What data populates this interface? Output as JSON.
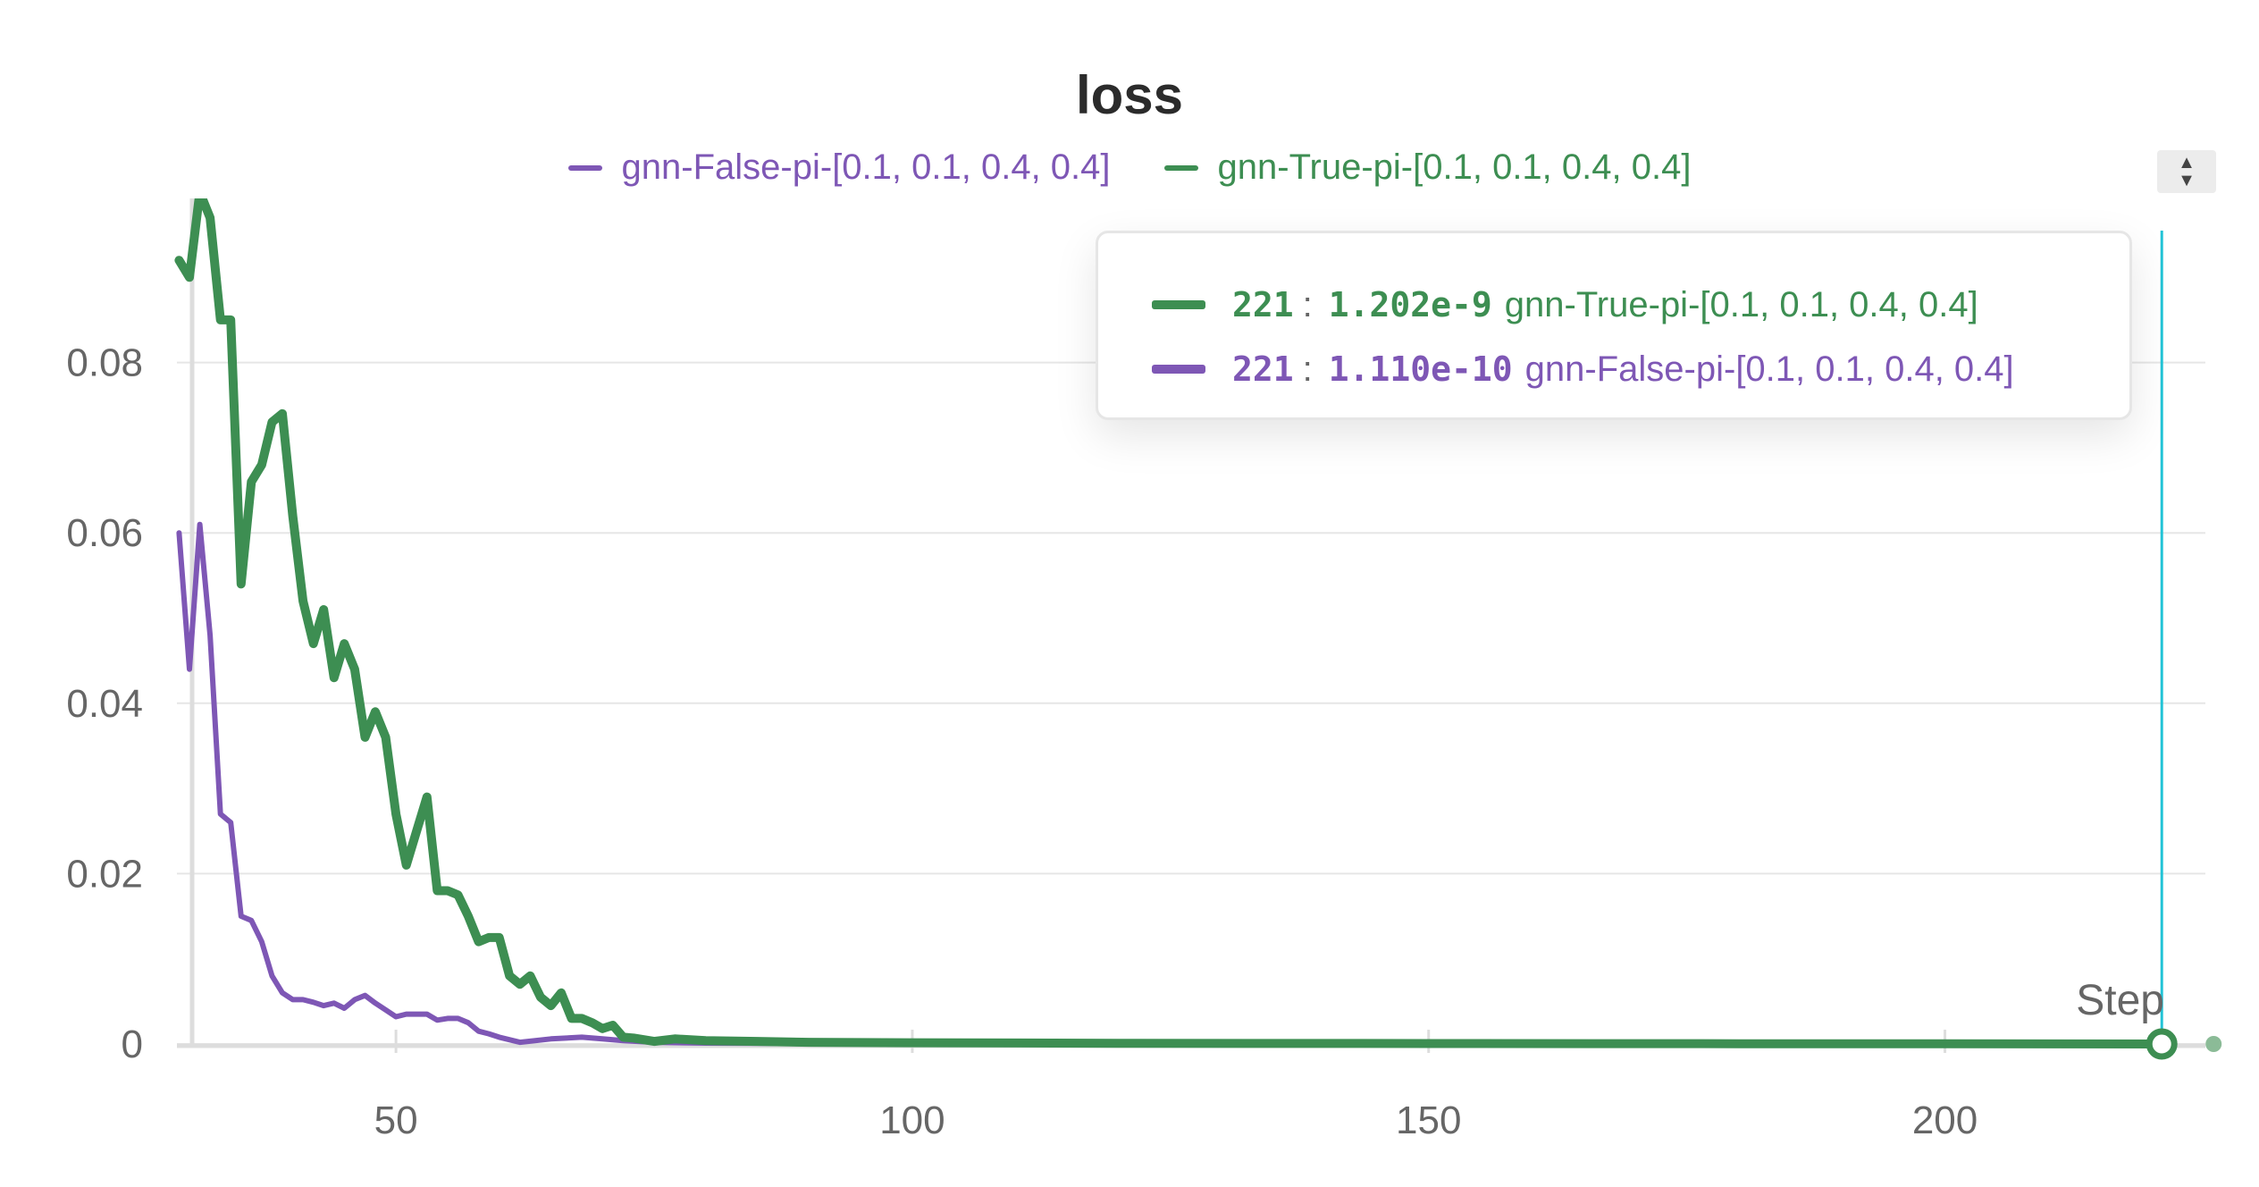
{
  "chart_data": {
    "type": "line",
    "title": "loss",
    "xlabel": "Step",
    "ylabel": "",
    "xlim": [
      30,
      226
    ],
    "ylim": [
      0,
      0.1
    ],
    "x_ticks": [
      "50",
      "100",
      "150",
      "200"
    ],
    "y_ticks": [
      "0",
      "0.02",
      "0.04",
      "0.06",
      "0.08"
    ],
    "grid": true,
    "legend": "top-center",
    "series": [
      {
        "name": "gnn-False-pi-[0.1, 0.1, 0.4, 0.4]",
        "color": "#7e57b5",
        "x": [
          29,
          30,
          31,
          32,
          33,
          34,
          35,
          36,
          37,
          38,
          39,
          40,
          41,
          42,
          43,
          44,
          45,
          46,
          47,
          48,
          49,
          50,
          51,
          52,
          53,
          54,
          55,
          56,
          57,
          58,
          59,
          60,
          62,
          65,
          68,
          70,
          72,
          75,
          80,
          90,
          100,
          120,
          150,
          180,
          200,
          221
        ],
        "y": [
          0.06,
          0.044,
          0.061,
          0.048,
          0.027,
          0.026,
          0.015,
          0.0145,
          0.012,
          0.008,
          0.006,
          0.0052,
          0.0052,
          0.0049,
          0.0045,
          0.0048,
          0.0042,
          0.0052,
          0.0057,
          0.0048,
          0.004,
          0.0032,
          0.0035,
          0.0035,
          0.0035,
          0.0028,
          0.003,
          0.003,
          0.0025,
          0.0015,
          0.0012,
          0.0008,
          0.0002,
          0.0006,
          0.0008,
          0.0006,
          0.0004,
          0.0002,
          0.0001,
          5e-05,
          2e-05,
          1e-05,
          0.0,
          0.0,
          0.0,
          1.11e-10
        ]
      },
      {
        "name": "gnn-True-pi-[0.1, 0.1, 0.4, 0.4]",
        "color": "#3d8e52",
        "x": [
          29,
          30,
          31,
          32,
          33,
          34,
          35,
          36,
          37,
          38,
          39,
          40,
          41,
          42,
          43,
          44,
          45,
          46,
          47,
          48,
          49,
          50,
          51,
          52,
          53,
          54,
          55,
          56,
          57,
          58,
          59,
          60,
          61,
          62,
          63,
          64,
          65,
          66,
          67,
          68,
          69,
          70,
          71,
          72,
          73,
          75,
          77,
          80,
          85,
          90,
          100,
          120,
          150,
          180,
          200,
          221
        ],
        "y": [
          0.092,
          0.09,
          0.1,
          0.097,
          0.085,
          0.085,
          0.054,
          0.066,
          0.068,
          0.073,
          0.074,
          0.062,
          0.052,
          0.047,
          0.051,
          0.043,
          0.047,
          0.044,
          0.036,
          0.039,
          0.036,
          0.027,
          0.021,
          0.025,
          0.029,
          0.018,
          0.018,
          0.0175,
          0.015,
          0.012,
          0.0125,
          0.0125,
          0.008,
          0.007,
          0.008,
          0.0055,
          0.0045,
          0.006,
          0.003,
          0.003,
          0.0025,
          0.0018,
          0.0022,
          0.0008,
          0.0007,
          0.0003,
          0.0006,
          0.0004,
          0.0003,
          0.0002,
          0.00015,
          8e-05,
          5e-05,
          3e-05,
          2e-05,
          1.202e-09
        ]
      }
    ],
    "hover": {
      "step": "221",
      "rows": [
        {
          "value": "1.202e-9",
          "name": "gnn-True-pi-[0.1, 0.1, 0.4, 0.4]",
          "color": "#3d8e52"
        },
        {
          "value": "1.110e-10",
          "name": "gnn-False-pi-[0.1, 0.1, 0.4, 0.4]",
          "color": "#7e57b5"
        }
      ]
    },
    "hover_line_color": "#22c3d6",
    "grid_color": "#e6e6e6"
  }
}
